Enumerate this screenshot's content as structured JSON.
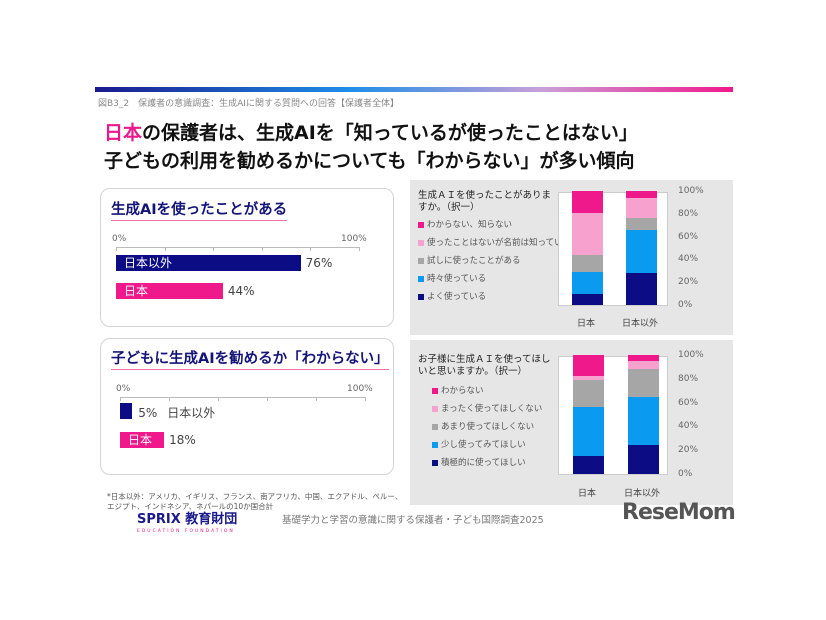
{
  "header": {
    "caption": "図B3_2　保護者の意識調査：生成AIに関する質問への回答【保護者全体】",
    "title_line1_highlight": "日本",
    "title_line1_rest": "の保護者は、生成AIを「知っているが使ったことはない」",
    "title_line2": "子どもの利用を勧めるかについても「わからない」が多い傾向"
  },
  "colors": {
    "navy": "#0c0c84",
    "pink": "#f0198c",
    "lightpink": "#f7a1cf",
    "gray": "#a6a6a6",
    "blue": "#0a9af0"
  },
  "chart_data": [
    {
      "type": "bar",
      "orientation": "horizontal",
      "title": "生成AIを使ったことがある",
      "xlim": [
        0,
        100
      ],
      "tick_labels": [
        "0%",
        "100%"
      ],
      "categories": [
        "日本以外",
        "日本"
      ],
      "values": [
        76,
        44
      ],
      "value_labels": [
        "76%",
        "44%"
      ]
    },
    {
      "type": "bar",
      "orientation": "horizontal",
      "title": "子どもに生成AIを勧めるか「わからない」",
      "xlim": [
        0,
        100
      ],
      "tick_labels": [
        "0%",
        "100%"
      ],
      "categories": [
        "日本以外",
        "日本"
      ],
      "values": [
        5,
        18
      ],
      "value_labels": [
        "5%",
        "18%"
      ]
    },
    {
      "type": "bar",
      "stacked": true,
      "title": "生成ＡＩを使ったことがありますか。（択一）",
      "categories": [
        "日本",
        "日本以外"
      ],
      "ylim": [
        0,
        100
      ],
      "yticks": [
        "0%",
        "20%",
        "40%",
        "60%",
        "80%",
        "100%"
      ],
      "series": [
        {
          "name": "よく使っている",
          "values": [
            10,
            28
          ]
        },
        {
          "name": "時々使っている",
          "values": [
            19,
            38
          ]
        },
        {
          "name": "試しに使ったことがある",
          "values": [
            15,
            10
          ]
        },
        {
          "name": "使ったことはないが名前は知っている",
          "values": [
            37,
            18
          ]
        },
        {
          "name": "わからない、知らない",
          "values": [
            19,
            6
          ]
        }
      ]
    },
    {
      "type": "bar",
      "stacked": true,
      "title": "お子様に生成ＡＩを使ってほしいと思いますか。（択一）",
      "categories": [
        "日本",
        "日本以外"
      ],
      "ylim": [
        0,
        100
      ],
      "yticks": [
        "0%",
        "20%",
        "40%",
        "60%",
        "80%",
        "100%"
      ],
      "series": [
        {
          "name": "積極的に使ってほしい",
          "values": [
            15,
            24
          ]
        },
        {
          "name": "少し使ってみてほしい",
          "values": [
            41,
            41
          ]
        },
        {
          "name": "あまり使ってほしくない",
          "values": [
            23,
            23
          ]
        },
        {
          "name": "まったく使ってほしくない",
          "values": [
            3,
            7
          ]
        },
        {
          "name": "わからない",
          "values": [
            18,
            5
          ]
        }
      ]
    }
  ],
  "footer": {
    "note": "*日本以外：アメリカ、イギリス、フランス、南アフリカ、中国、エクアドル、ペルー、エジプト、インドネシア、ネパールの10か国合計",
    "logo": "SPRIX 教育財団",
    "logo_sub": "EDUCATION FOUNDATION",
    "source": "基礎学力と学習の意識に関する保護者・子ども国際調査2025",
    "watermark": "ReseMom"
  }
}
